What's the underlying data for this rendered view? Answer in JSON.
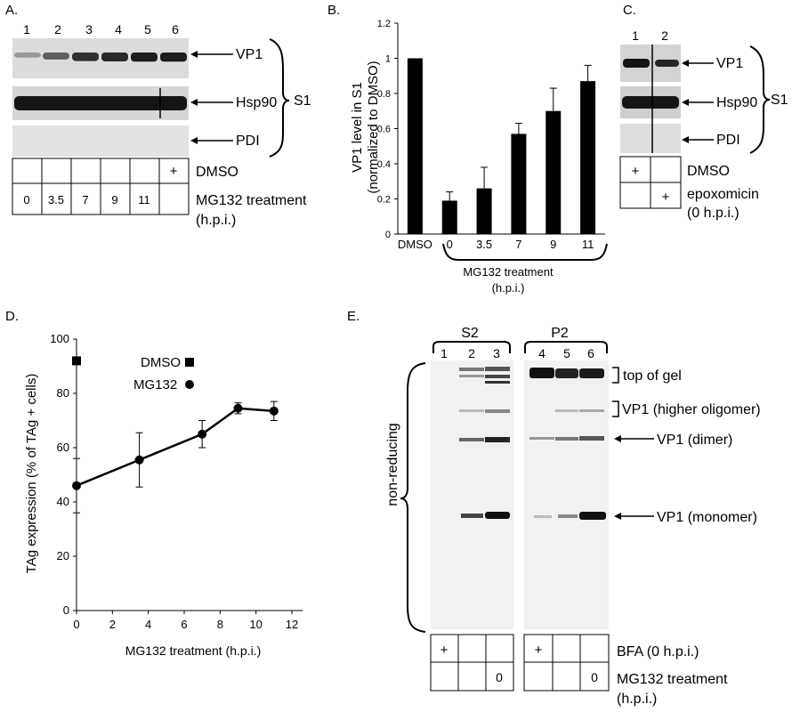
{
  "panel_a": {
    "letter": "A.",
    "lanes": [
      "1",
      "2",
      "3",
      "4",
      "5",
      "6"
    ],
    "blot_labels": [
      "VP1",
      "Hsp90",
      "PDI"
    ],
    "bracket_label": "S1",
    "dmso_row": [
      "",
      "",
      "",
      "",
      "",
      "+"
    ],
    "dmso_label": "DMSO",
    "mg_row": [
      "0",
      "3.5",
      "7",
      "9",
      "11",
      ""
    ],
    "mg_label_1": "MG132 treatment",
    "mg_label_2": "(h.p.i.)",
    "vp1_band_intensity": [
      0.25,
      0.55,
      0.8,
      0.85,
      0.9,
      0.9
    ]
  },
  "panel_c": {
    "letter": "C.",
    "lanes": [
      "1",
      "2"
    ],
    "blot_labels": [
      "VP1",
      "Hsp90",
      "PDI"
    ],
    "bracket_label": "S1",
    "dmso_row": [
      "+",
      ""
    ],
    "dmso_label": "DMSO",
    "epox_row": [
      "",
      "+"
    ],
    "epox_label_1": "epoxomicin",
    "epox_label_2": "(0 h.p.i.)"
  },
  "panel_e": {
    "letter": "E.",
    "group_s2": "S2",
    "group_p2": "P2",
    "lanes": [
      "1",
      "2",
      "3",
      "4",
      "5",
      "6"
    ],
    "side_label": "non-reducing",
    "band_labels": [
      "top of gel",
      "VP1 (higher oligomer)",
      "VP1 (dimer)",
      "VP1 (monomer)"
    ],
    "bfa_row": [
      "+",
      "",
      "",
      "+",
      "",
      ""
    ],
    "bfa_label": "BFA (0 h.p.i.)",
    "mg_row": [
      "",
      "",
      "0",
      "",
      "",
      "0"
    ],
    "mg_label_1": "MG132 treatment",
    "mg_label_2": "(h.p.i.)"
  },
  "chart_data": [
    {
      "panel": "B.",
      "type": "bar",
      "categories": [
        "DMSO",
        "0",
        "3.5",
        "7",
        "9",
        "11"
      ],
      "values": [
        1.0,
        0.19,
        0.26,
        0.57,
        0.7,
        0.87
      ],
      "errors": [
        0,
        0.05,
        0.12,
        0.06,
        0.13,
        0.09
      ],
      "ylabel_1": "VP1 level in S1",
      "ylabel_2": "(normalized to DMSO)",
      "ylim": [
        0,
        1.2
      ],
      "yticks": [
        "0",
        "0.2",
        "0.4",
        "0.6",
        "0.8",
        "1",
        "1.2"
      ],
      "bracket_label_1": "MG132 treatment",
      "bracket_label_2": "(h.p.i.)",
      "color": "#000000"
    },
    {
      "panel": "D.",
      "type": "line",
      "series": [
        {
          "name": "MG132",
          "x": [
            0,
            3.5,
            7,
            9,
            11
          ],
          "y": [
            46,
            55.5,
            65,
            74.5,
            73.5
          ],
          "err": [
            10,
            10,
            5,
            2,
            3.5
          ],
          "marker": "circle"
        },
        {
          "name": "DMSO",
          "x": [
            0
          ],
          "y": [
            92
          ],
          "err": [
            0
          ],
          "marker": "square"
        }
      ],
      "xlabel": "MG132 treatment (h.p.i.)",
      "ylabel": "TAg  expression (% of TAg + cells)",
      "xlim": [
        0,
        12
      ],
      "ylim": [
        0,
        100
      ],
      "xticks": [
        "0",
        "2",
        "4",
        "6",
        "8",
        "10",
        "12"
      ],
      "yticks": [
        "0",
        "20",
        "40",
        "60",
        "80",
        "100"
      ]
    }
  ]
}
